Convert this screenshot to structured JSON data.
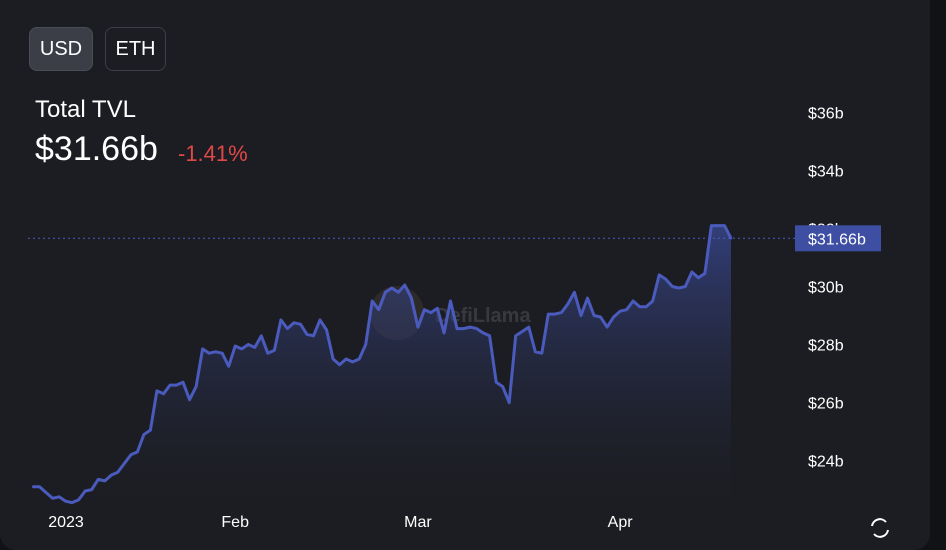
{
  "currency_toggle": {
    "usd_label": "USD",
    "eth_label": "ETH",
    "selected": "USD"
  },
  "header": {
    "title": "Total TVL",
    "value": "$31.66b",
    "change": "-1.41%"
  },
  "watermark": "DefiLlama",
  "colors": {
    "background": "#1c1d22",
    "line": "#4a5bbd",
    "area_top": "#3a4a96",
    "negative": "#e04848",
    "price_tag": "#3e4fa3"
  },
  "icons": {
    "refresh": "refresh-icon"
  },
  "chart_data": {
    "type": "area",
    "title": "Total TVL",
    "xlabel": "",
    "ylabel": "",
    "x_tick_labels": [
      "2023",
      "Feb",
      "Mar",
      "Apr"
    ],
    "y_tick_labels": [
      "$24b",
      "$26b",
      "$28b",
      "$30b",
      "$32b",
      "$34b",
      "$36b"
    ],
    "y_ticks": [
      24,
      26,
      28,
      30,
      32,
      34,
      36
    ],
    "ylim": [
      22.4,
      37.6
    ],
    "grid": false,
    "current_value_label": "$31.66b",
    "current_value": 31.66,
    "x_unit": "date",
    "series": [
      {
        "values_unit": "USD billions",
        "points": [
          [
            "2023-01-01",
            23.1
          ],
          [
            "2023-01-02",
            23.1
          ],
          [
            "2023-01-03",
            22.9
          ],
          [
            "2023-01-04",
            22.7
          ],
          [
            "2023-01-05",
            22.75
          ],
          [
            "2023-01-06",
            22.6
          ],
          [
            "2023-01-07",
            22.55
          ],
          [
            "2023-01-08",
            22.65
          ],
          [
            "2023-01-09",
            22.95
          ],
          [
            "2023-01-10",
            23.0
          ],
          [
            "2023-01-11",
            23.35
          ],
          [
            "2023-01-12",
            23.3
          ],
          [
            "2023-01-13",
            23.5
          ],
          [
            "2023-01-14",
            23.6
          ],
          [
            "2023-01-15",
            23.9
          ],
          [
            "2023-01-16",
            24.2
          ],
          [
            "2023-01-17",
            24.3
          ],
          [
            "2023-01-18",
            24.9
          ],
          [
            "2023-01-19",
            25.05
          ],
          [
            "2023-01-20",
            26.4
          ],
          [
            "2023-01-21",
            26.3
          ],
          [
            "2023-01-22",
            26.6
          ],
          [
            "2023-01-23",
            26.6
          ],
          [
            "2023-01-24",
            26.7
          ],
          [
            "2023-01-25",
            26.1
          ],
          [
            "2023-01-26",
            26.55
          ],
          [
            "2023-01-27",
            27.85
          ],
          [
            "2023-01-28",
            27.7
          ],
          [
            "2023-01-29",
            27.75
          ],
          [
            "2023-01-30",
            27.7
          ],
          [
            "2023-01-31",
            27.25
          ],
          [
            "2023-02-01",
            27.95
          ],
          [
            "2023-02-02",
            27.85
          ],
          [
            "2023-02-03",
            28.0
          ],
          [
            "2023-02-04",
            27.9
          ],
          [
            "2023-02-05",
            28.3
          ],
          [
            "2023-02-06",
            27.7
          ],
          [
            "2023-02-07",
            27.8
          ],
          [
            "2023-02-08",
            28.85
          ],
          [
            "2023-02-09",
            28.55
          ],
          [
            "2023-02-10",
            28.75
          ],
          [
            "2023-02-11",
            28.7
          ],
          [
            "2023-02-12",
            28.35
          ],
          [
            "2023-02-13",
            28.3
          ],
          [
            "2023-02-14",
            28.85
          ],
          [
            "2023-02-15",
            28.5
          ],
          [
            "2023-02-16",
            27.5
          ],
          [
            "2023-02-17",
            27.3
          ],
          [
            "2023-02-18",
            27.5
          ],
          [
            "2023-02-19",
            27.4
          ],
          [
            "2023-02-20",
            27.5
          ],
          [
            "2023-02-21",
            28.0
          ],
          [
            "2023-02-22",
            29.5
          ],
          [
            "2023-02-23",
            29.2
          ],
          [
            "2023-02-24",
            29.8
          ],
          [
            "2023-02-25",
            29.95
          ],
          [
            "2023-02-26",
            29.8
          ],
          [
            "2023-02-27",
            30.05
          ],
          [
            "2023-02-28",
            29.6
          ],
          [
            "2023-03-01",
            28.6
          ],
          [
            "2023-03-02",
            29.2
          ],
          [
            "2023-03-03",
            29.1
          ],
          [
            "2023-03-04",
            29.25
          ],
          [
            "2023-03-05",
            28.4
          ],
          [
            "2023-03-06",
            29.5
          ],
          [
            "2023-03-07",
            28.55
          ],
          [
            "2023-03-08",
            28.55
          ],
          [
            "2023-03-09",
            28.6
          ],
          [
            "2023-03-10",
            28.55
          ],
          [
            "2023-03-11",
            28.4
          ],
          [
            "2023-03-12",
            28.3
          ],
          [
            "2023-03-13",
            26.7
          ],
          [
            "2023-03-14",
            26.55
          ],
          [
            "2023-03-15",
            26.0
          ],
          [
            "2023-03-16",
            28.3
          ],
          [
            "2023-03-17",
            28.45
          ],
          [
            "2023-03-18",
            28.6
          ],
          [
            "2023-03-19",
            27.75
          ],
          [
            "2023-03-20",
            27.7
          ],
          [
            "2023-03-21",
            29.05
          ],
          [
            "2023-03-22",
            29.05
          ],
          [
            "2023-03-23",
            29.1
          ],
          [
            "2023-03-24",
            29.4
          ],
          [
            "2023-03-25",
            29.8
          ],
          [
            "2023-03-26",
            29.0
          ],
          [
            "2023-03-27",
            29.6
          ],
          [
            "2023-03-28",
            29.0
          ],
          [
            "2023-03-29",
            28.95
          ],
          [
            "2023-03-30",
            28.6
          ],
          [
            "2023-03-31",
            28.95
          ],
          [
            "2023-04-01",
            29.15
          ],
          [
            "2023-04-02",
            29.2
          ],
          [
            "2023-04-03",
            29.5
          ],
          [
            "2023-04-04",
            29.3
          ],
          [
            "2023-04-05",
            29.3
          ],
          [
            "2023-04-06",
            29.5
          ],
          [
            "2023-04-07",
            30.4
          ],
          [
            "2023-04-08",
            30.25
          ],
          [
            "2023-04-09",
            30.0
          ],
          [
            "2023-04-10",
            29.95
          ],
          [
            "2023-04-11",
            30.0
          ],
          [
            "2023-04-12",
            30.5
          ],
          [
            "2023-04-13",
            30.3
          ],
          [
            "2023-04-14",
            30.45
          ],
          [
            "2023-04-15",
            32.1
          ],
          [
            "2023-04-16",
            32.1
          ],
          [
            "2023-04-17",
            32.1
          ],
          [
            "2023-04-18",
            31.66
          ]
        ]
      }
    ]
  }
}
